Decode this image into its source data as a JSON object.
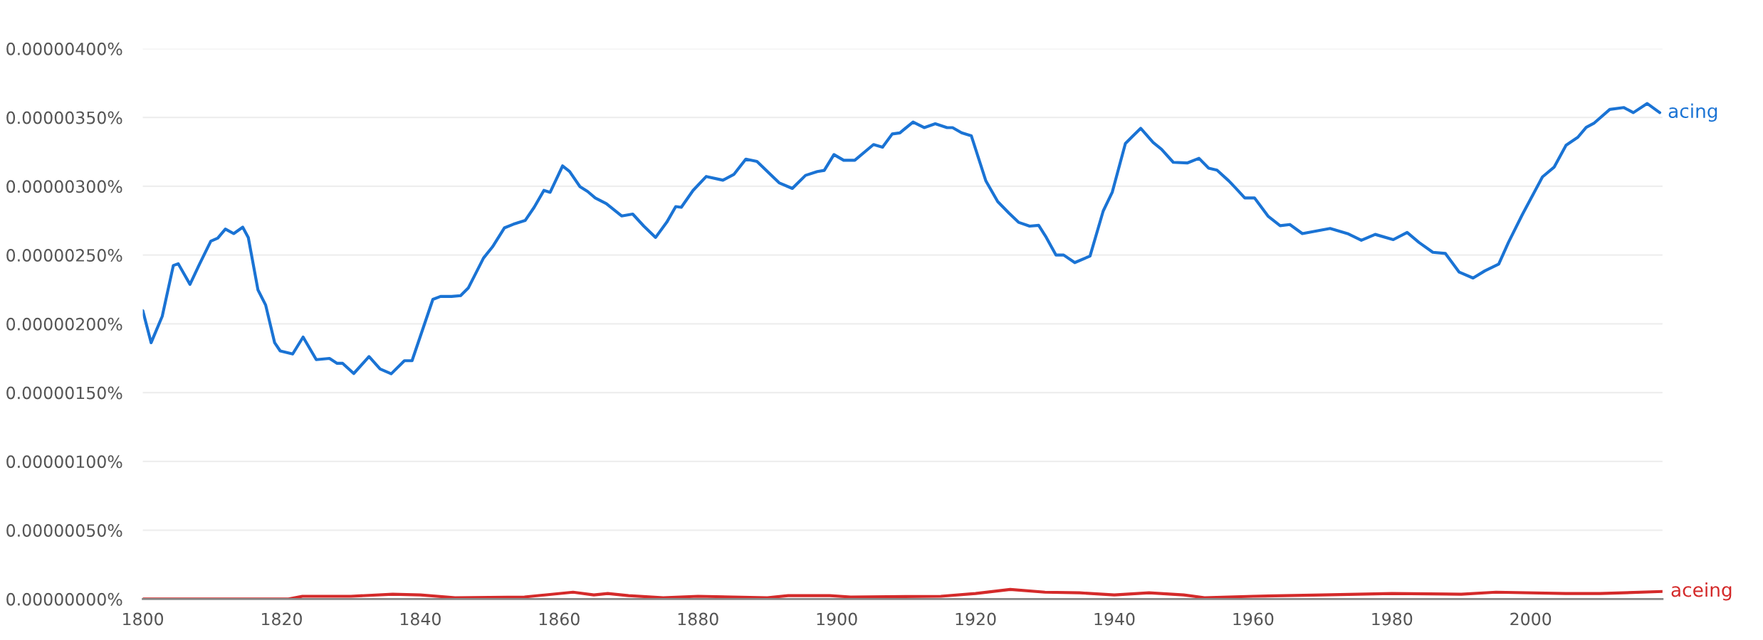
{
  "chart_data": {
    "type": "line",
    "xlim": [
      1800,
      2019
    ],
    "ylim": [
      0,
      4e-06
    ],
    "xticks": [
      1800,
      1820,
      1840,
      1860,
      1880,
      1900,
      1920,
      1940,
      1960,
      1980,
      2000
    ],
    "yticks": [
      {
        "value": 0,
        "label": "0.00000000%"
      },
      {
        "value": 5e-07,
        "label": "0.00000050%"
      },
      {
        "value": 1e-06,
        "label": "0.00000100%"
      },
      {
        "value": 1.5e-06,
        "label": "0.00000150%"
      },
      {
        "value": 2e-06,
        "label": "0.00000200%"
      },
      {
        "value": 2.5e-06,
        "label": "0.00000250%"
      },
      {
        "value": 3e-06,
        "label": "0.00000300%"
      },
      {
        "value": 3.5e-06,
        "label": "0.00000350%"
      },
      {
        "value": 4e-06,
        "label": "0.00000400%"
      }
    ],
    "grid": "y",
    "legend": false,
    "series": [
      {
        "name": "acing",
        "color": "#1a73d4",
        "x": [
          1800.0,
          1801.2,
          1802.8,
          1804.4,
          1805.1,
          1806.8,
          1808.2,
          1809.8,
          1810.8,
          1811.9,
          1813.1,
          1814.4,
          1815.2,
          1816.6,
          1817.7,
          1819.0,
          1819.8,
          1821.6,
          1823.1,
          1825.0,
          1826.9,
          1828.0,
          1828.8,
          1830.4,
          1832.6,
          1834.2,
          1835.8,
          1837.7,
          1838.8,
          1841.8,
          1842.9,
          1844.5,
          1845.8,
          1846.9,
          1849.1,
          1850.4,
          1852.1,
          1853.4,
          1855.1,
          1856.4,
          1857.8,
          1858.7,
          1860.5,
          1861.5,
          1863.0,
          1864.1,
          1865.2,
          1866.8,
          1869.0,
          1870.6,
          1872.2,
          1873.9,
          1875.5,
          1876.8,
          1877.6,
          1879.3,
          1881.2,
          1883.6,
          1885.2,
          1886.9,
          1888.5,
          1891.7,
          1893.6,
          1895.5,
          1897.2,
          1898.2,
          1899.6,
          1901.0,
          1902.6,
          1905.3,
          1906.6,
          1908.0,
          1909.1,
          1911.0,
          1912.6,
          1914.2,
          1915.9,
          1916.7,
          1918.0,
          1919.4,
          1921.5,
          1923.2,
          1924.8,
          1926.2,
          1927.8,
          1929.1,
          1930.2,
          1931.6,
          1932.7,
          1934.3,
          1936.5,
          1938.4,
          1939.7,
          1941.6,
          1942.7,
          1943.8,
          1945.6,
          1946.8,
          1948.5,
          1950.5,
          1952.2,
          1953.6,
          1954.8,
          1956.5,
          1957.6,
          1958.8,
          1960.2,
          1962.2,
          1963.9,
          1965.3,
          1967.1,
          1971.1,
          1973.6,
          1975.6,
          1977.6,
          1980.2,
          1982.2,
          1983.9,
          1985.9,
          1987.7,
          1989.7,
          1991.7,
          1993.4,
          1995.4,
          1996.8,
          1998.8,
          2001.7,
          2003.4,
          2005.1,
          2006.8,
          2008.0,
          2009.1,
          2011.4,
          2013.4,
          2014.8,
          2016.8,
          2018.6
        ],
        "values": [
          2.096e-06,
          1.863e-06,
          2.055e-06,
          2.424e-06,
          2.437e-06,
          2.287e-06,
          2.437e-06,
          2.601e-06,
          2.623e-06,
          2.689e-06,
          2.656e-06,
          2.702e-06,
          2.628e-06,
          2.246e-06,
          2.137e-06,
          1.863e-06,
          1.803e-06,
          1.781e-06,
          1.904e-06,
          1.74e-06,
          1.749e-06,
          1.713e-06,
          1.713e-06,
          1.639e-06,
          1.762e-06,
          1.672e-06,
          1.637e-06,
          1.732e-06,
          1.732e-06,
          2.178e-06,
          2.199e-06,
          2.199e-06,
          2.205e-06,
          2.26e-06,
          2.478e-06,
          2.56e-06,
          2.697e-06,
          2.724e-06,
          2.751e-06,
          2.847e-06,
          2.97e-06,
          2.956e-06,
          3.148e-06,
          3.107e-06,
          2.997e-06,
          2.962e-06,
          2.915e-06,
          2.874e-06,
          2.784e-06,
          2.798e-06,
          2.71e-06,
          2.628e-06,
          2.738e-06,
          2.852e-06,
          2.847e-06,
          2.97e-06,
          3.071e-06,
          3.044e-06,
          3.087e-06,
          3.197e-06,
          3.18e-06,
          3.025e-06,
          2.984e-06,
          3.079e-06,
          3.107e-06,
          3.115e-06,
          3.23e-06,
          3.189e-06,
          3.189e-06,
          3.303e-06,
          3.284e-06,
          3.38e-06,
          3.388e-06,
          3.467e-06,
          3.426e-06,
          3.454e-06,
          3.426e-06,
          3.426e-06,
          3.388e-06,
          3.366e-06,
          3.038e-06,
          2.888e-06,
          2.806e-06,
          2.738e-06,
          2.71e-06,
          2.716e-06,
          2.628e-06,
          2.5e-06,
          2.5e-06,
          2.445e-06,
          2.492e-06,
          2.82e-06,
          2.956e-06,
          3.311e-06,
          3.366e-06,
          3.421e-06,
          3.318e-06,
          3.269e-06,
          3.174e-06,
          3.169e-06,
          3.203e-06,
          3.131e-06,
          3.117e-06,
          3.039e-06,
          2.981e-06,
          2.915e-06,
          2.915e-06,
          2.78e-06,
          2.713e-06,
          2.722e-06,
          2.656e-06,
          2.693e-06,
          2.656e-06,
          2.607e-06,
          2.65e-06,
          2.612e-06,
          2.664e-06,
          2.592e-06,
          2.52e-06,
          2.512e-06,
          2.376e-06,
          2.333e-06,
          2.385e-06,
          2.434e-06,
          2.592e-06,
          2.794e-06,
          3.068e-06,
          3.14e-06,
          3.298e-06,
          3.356e-06,
          3.428e-06,
          3.457e-06,
          3.558e-06,
          3.572e-06,
          3.535e-06,
          3.601e-06,
          3.535e-06
        ]
      },
      {
        "name": "aceing",
        "color": "#d42a2a",
        "x": [
          1800,
          1821,
          1823,
          1830,
          1836,
          1840,
          1845,
          1855,
          1862,
          1865,
          1867,
          1870,
          1875,
          1880,
          1890,
          1893,
          1899,
          1902,
          1915,
          1920,
          1925,
          1930,
          1935,
          1940,
          1945,
          1950,
          1953,
          1960,
          1970,
          1980,
          1990,
          1995,
          2005,
          2010,
          2019
        ],
        "values": [
          0,
          0,
          2e-08,
          2e-08,
          3.5e-08,
          3e-08,
          1e-08,
          1.5e-08,
          5e-08,
          3e-08,
          4e-08,
          2.5e-08,
          1e-08,
          2e-08,
          1e-08,
          2.5e-08,
          2.5e-08,
          1.5e-08,
          2e-08,
          4e-08,
          7e-08,
          5e-08,
          4.5e-08,
          3e-08,
          4.5e-08,
          3e-08,
          1e-08,
          2e-08,
          3e-08,
          4e-08,
          3.5e-08,
          5e-08,
          4e-08,
          4e-08,
          5.5e-08
        ]
      }
    ]
  }
}
